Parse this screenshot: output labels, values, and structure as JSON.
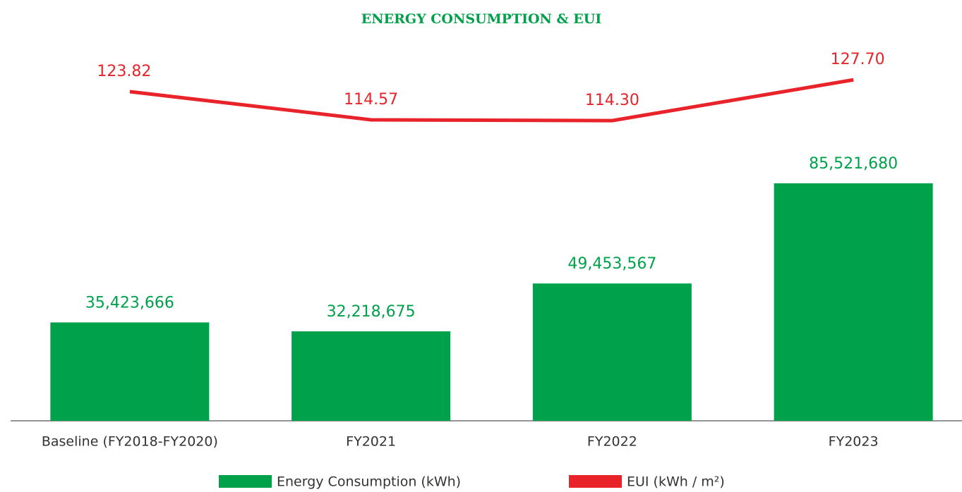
{
  "chart_data": {
    "type": "bar",
    "title": "ENERGY CONSUMPTION & EUI",
    "categories": [
      "Baseline (FY2018-FY2020)",
      "FY2021",
      "FY2022",
      "FY2023"
    ],
    "series": [
      {
        "name": "Energy Consumption (kWh)",
        "type": "bar",
        "color": "#00a14b",
        "values": [
          35423666,
          32218675,
          49453567,
          85521680
        ],
        "value_labels": [
          "35,423,666",
          "32,218,675",
          "49,453,567",
          "85,521,680"
        ]
      },
      {
        "name": "EUI (kWh / m²)",
        "type": "line",
        "axis": "y2",
        "color": "#e8232a",
        "values": [
          123.82,
          114.57,
          114.3,
          127.7
        ],
        "value_labels": [
          "123.82",
          "114.57",
          "114.30",
          "127.70"
        ]
      }
    ],
    "ylim": [
      0,
      149000000
    ],
    "y2lim": [
      15.7,
      151.6
    ],
    "legend": "bottom"
  }
}
